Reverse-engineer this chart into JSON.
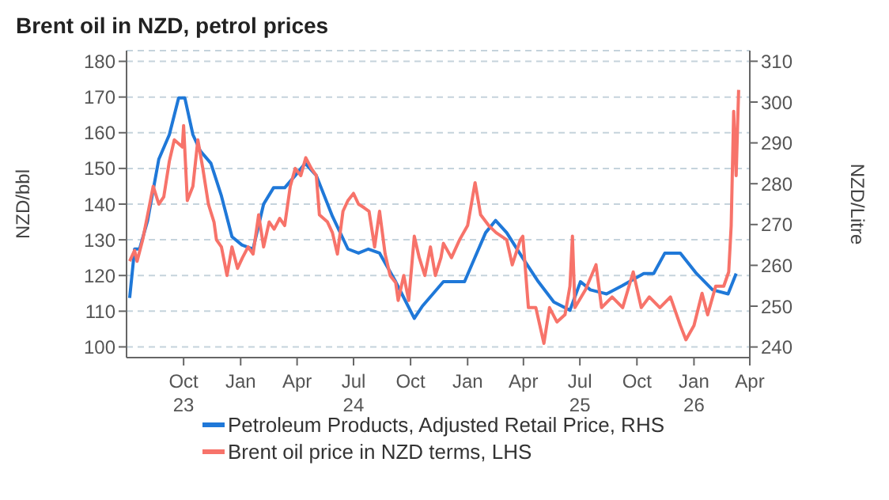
{
  "chart_data": {
    "type": "line",
    "title": "Brent oil in NZD, petrol prices",
    "ylabel": "NZD/bbl",
    "y2label": "NZD/Litre",
    "xlim": [
      "2023-07-01",
      "2026-04-01"
    ],
    "xticks": [
      {
        "value": "2023-10",
        "label": "Oct\n23"
      },
      {
        "value": "2024-01",
        "label": "Jan"
      },
      {
        "value": "2024-04",
        "label": "Apr"
      },
      {
        "value": "2024-07",
        "label": "Jul\n24"
      },
      {
        "value": "2024-10",
        "label": "Oct"
      },
      {
        "value": "2025-01",
        "label": "Jan"
      },
      {
        "value": "2025-04",
        "label": "Apr"
      },
      {
        "value": "2025-07",
        "label": "Jul\n25"
      },
      {
        "value": "2025-10",
        "label": "Oct"
      },
      {
        "value": "2026-01",
        "label": "Jan\n26"
      },
      {
        "value": "2026-04",
        "label": "Apr"
      }
    ],
    "ylim": [
      97,
      183
    ],
    "yticks": [
      100,
      110,
      120,
      130,
      140,
      150,
      160,
      170,
      180
    ],
    "y2lim": [
      237.4,
      312.6
    ],
    "y2ticks": [
      240,
      250,
      260,
      270,
      280,
      290,
      300,
      310
    ],
    "grid": "y",
    "legend": "bottom",
    "line_style": "solid",
    "marker": "none",
    "series": [
      {
        "name": "Petroleum Products, Adjusted Retail Price, RHS",
        "color": "#1f78d8",
        "axis": "y2",
        "x": [
          "2023-07-06",
          "2023-07-14",
          "2023-07-22",
          "2023-08-04",
          "2023-08-22",
          "2023-09-08",
          "2023-09-23",
          "2023-10-03",
          "2023-10-16",
          "2023-10-28",
          "2023-11-14",
          "2023-12-01",
          "2023-12-18",
          "2024-01-03",
          "2024-01-21",
          "2024-02-07",
          "2024-02-23",
          "2024-03-12",
          "2024-03-29",
          "2024-04-14",
          "2024-05-02",
          "2024-05-28",
          "2024-06-22",
          "2024-07-09",
          "2024-07-25",
          "2024-08-12",
          "2024-09-07",
          "2024-10-07",
          "2024-10-20",
          "2024-11-06",
          "2024-11-23",
          "2024-12-14",
          "2024-12-27",
          "2025-01-13",
          "2025-01-30",
          "2025-02-15",
          "2025-03-05",
          "2025-03-30",
          "2025-04-25",
          "2025-05-20",
          "2025-06-15",
          "2025-07-02",
          "2025-07-18",
          "2025-08-13",
          "2025-09-07",
          "2025-10-12",
          "2025-10-28",
          "2025-11-15",
          "2025-12-10",
          "2026-01-05",
          "2026-01-31",
          "2026-02-25",
          "2026-03-10"
        ],
        "values": [
          252,
          264,
          264,
          271,
          286,
          292,
          301,
          301,
          292,
          288,
          285,
          277,
          267,
          265,
          264,
          275,
          279,
          279,
          282,
          285,
          282,
          272,
          264,
          263,
          264,
          263,
          256,
          247,
          250,
          253,
          256,
          256,
          256,
          262,
          268,
          271,
          268,
          262,
          256,
          251,
          249,
          256,
          254,
          253,
          255,
          258,
          258,
          263,
          263,
          258,
          254,
          253,
          258
        ]
      },
      {
        "name": "Brent oil price in NZD terms, LHS",
        "color": "#f7736a",
        "x": [
          "2023-07-06",
          "2023-07-14",
          "2023-07-18",
          "2023-07-27",
          "2023-08-04",
          "2023-08-13",
          "2023-08-22",
          "2023-08-30",
          "2023-09-08",
          "2023-09-16",
          "2023-09-29",
          "2023-10-01",
          "2023-10-07",
          "2023-10-16",
          "2023-10-24",
          "2023-11-01",
          "2023-11-10",
          "2023-11-19",
          "2023-11-23",
          "2023-12-01",
          "2023-12-10",
          "2023-12-18",
          "2023-12-27",
          "2024-01-04",
          "2024-01-13",
          "2024-01-21",
          "2024-01-30",
          "2024-02-07",
          "2024-02-16",
          "2024-02-24",
          "2024-03-04",
          "2024-03-12",
          "2024-03-21",
          "2024-03-29",
          "2024-04-07",
          "2024-04-15",
          "2024-04-24",
          "2024-05-02",
          "2024-05-07",
          "2024-05-20",
          "2024-05-28",
          "2024-06-05",
          "2024-06-14",
          "2024-06-22",
          "2024-07-01",
          "2024-07-09",
          "2024-07-18",
          "2024-07-26",
          "2024-08-04",
          "2024-08-12",
          "2024-08-21",
          "2024-08-29",
          "2024-09-07",
          "2024-09-11",
          "2024-09-20",
          "2024-09-28",
          "2024-10-07",
          "2024-10-15",
          "2024-10-24",
          "2024-11-02",
          "2024-11-10",
          "2024-11-19",
          "2024-11-23",
          "2024-12-06",
          "2024-12-19",
          "2025-01-01",
          "2025-01-13",
          "2025-01-22",
          "2025-02-04",
          "2025-02-16",
          "2025-03-05",
          "2025-03-14",
          "2025-03-27",
          "2025-03-31",
          "2025-04-09",
          "2025-04-21",
          "2025-05-04",
          "2025-05-13",
          "2025-05-25",
          "2025-06-07",
          "2025-06-15",
          "2025-06-19",
          "2025-06-23",
          "2025-07-10",
          "2025-07-27",
          "2025-08-05",
          "2025-08-22",
          "2025-09-08",
          "2025-09-25",
          "2025-10-08",
          "2025-10-21",
          "2025-11-07",
          "2025-11-24",
          "2025-12-10",
          "2025-12-19",
          "2026-01-01",
          "2026-01-14",
          "2026-01-23",
          "2026-02-05",
          "2026-02-18",
          "2026-02-26",
          "2026-03-02",
          "2026-03-06",
          "2026-03-10",
          "2026-03-14"
        ],
        "values": [
          124,
          127,
          124,
          130,
          137,
          145,
          140,
          142,
          152,
          158,
          156,
          162,
          141,
          145,
          158,
          150,
          140,
          135,
          130,
          128,
          120,
          128,
          122,
          125,
          128,
          126,
          137,
          128,
          135,
          133,
          136,
          134,
          145,
          150,
          148,
          153,
          150,
          148,
          137,
          135,
          132,
          126,
          138,
          141,
          143,
          140,
          139,
          138,
          128,
          138,
          126,
          120,
          118,
          113,
          120,
          113,
          131,
          125,
          120,
          128,
          120,
          125,
          129,
          125,
          130,
          134,
          146,
          137,
          134,
          132,
          130,
          123,
          130,
          131,
          111,
          111,
          101,
          111,
          107,
          109,
          117,
          131,
          111,
          116,
          123,
          111,
          114,
          111,
          121,
          111,
          114,
          111,
          114,
          106,
          102,
          106,
          115,
          109,
          117,
          117,
          121,
          134,
          166,
          148,
          172
        ]
      }
    ]
  }
}
